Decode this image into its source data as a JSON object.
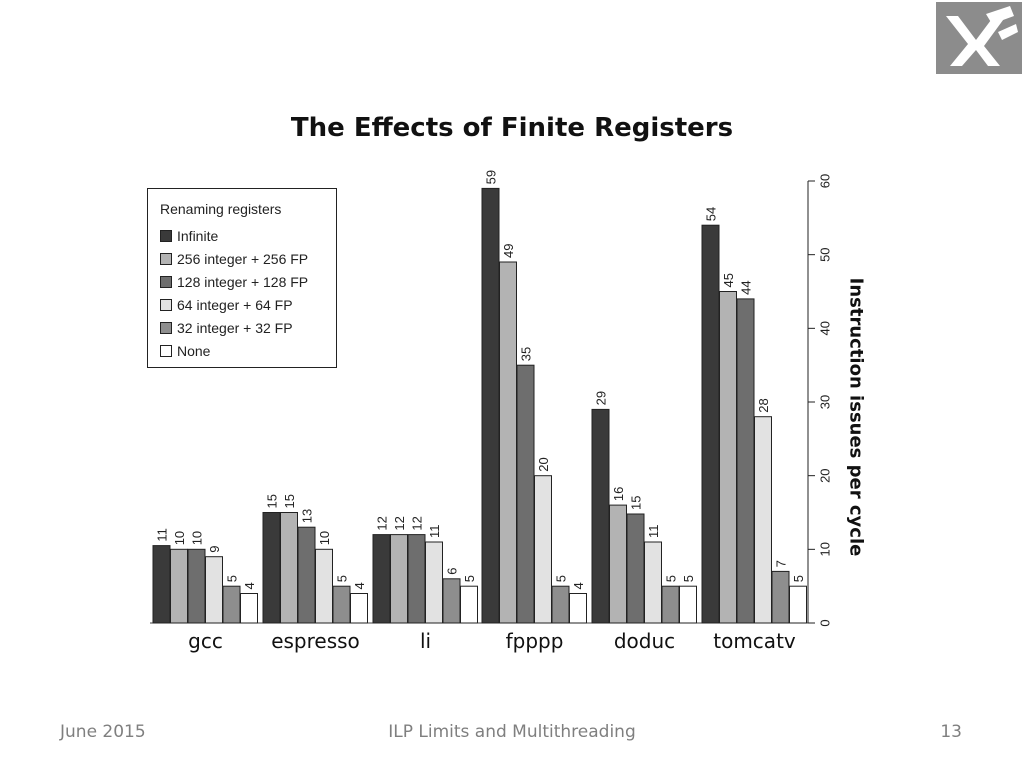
{
  "footer": {
    "date": "June 2015",
    "topic": "ILP Limits and Multithreading",
    "page": "13"
  },
  "logo": {
    "icon": "university-logo-icon"
  },
  "chart_data": {
    "type": "bar",
    "title": "The Effects of Finite Registers",
    "ylabel": "Instruction issues per cycle",
    "xlabel": "",
    "ylim": [
      0,
      60
    ],
    "yticks": [
      0,
      10,
      20,
      30,
      40,
      50,
      60
    ],
    "y_axis_position": "right",
    "grid": false,
    "legend": {
      "title": "Renaming registers",
      "placement": "top-left"
    },
    "categories": [
      "gcc",
      "espresso",
      "li",
      "fpppp",
      "doduc",
      "tomcatv"
    ],
    "series": [
      {
        "name": "Infinite",
        "color": "#3a3a3a",
        "values": [
          11,
          15,
          12,
          59,
          29,
          54
        ],
        "heights": [
          10.5,
          15,
          12,
          59,
          29,
          54
        ]
      },
      {
        "name": "256 integer + 256 FP",
        "color": "#b3b3b3",
        "values": [
          10,
          15,
          12,
          49,
          16,
          45
        ],
        "heights": [
          10,
          15,
          12,
          49,
          16,
          45
        ]
      },
      {
        "name": "128 integer + 128 FP",
        "color": "#6e6e6e",
        "values": [
          10,
          13,
          12,
          35,
          15,
          44
        ],
        "heights": [
          10,
          13,
          12,
          35,
          14.8,
          44
        ]
      },
      {
        "name": "64 integer + 64 FP",
        "color": "#e2e2e2",
        "values": [
          9,
          10,
          11,
          20,
          11,
          28
        ],
        "heights": [
          9,
          10,
          11,
          20,
          11,
          28
        ]
      },
      {
        "name": "32 integer + 32 FP",
        "color": "#8e8e8e",
        "values": [
          5,
          5,
          6,
          5,
          5,
          7
        ],
        "heights": [
          5,
          5,
          6,
          5,
          5,
          7
        ]
      },
      {
        "name": "None",
        "color": "#ffffff",
        "values": [
          4,
          4,
          5,
          4,
          5,
          5
        ],
        "heights": [
          4,
          4,
          5,
          4,
          5,
          5
        ]
      }
    ]
  }
}
